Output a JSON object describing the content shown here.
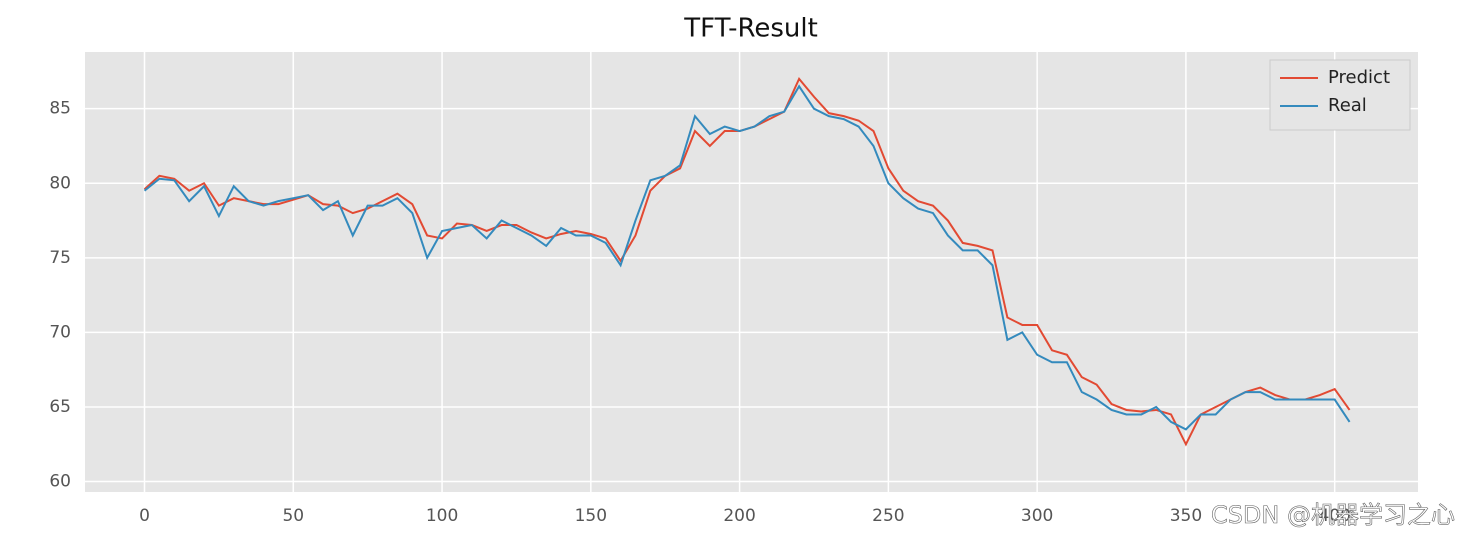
{
  "chart_data": {
    "type": "line",
    "title": "TFT-Result",
    "x": [
      0,
      5,
      10,
      15,
      20,
      25,
      30,
      35,
      40,
      45,
      50,
      55,
      60,
      65,
      70,
      75,
      80,
      85,
      90,
      95,
      100,
      105,
      110,
      115,
      120,
      125,
      130,
      135,
      140,
      145,
      150,
      155,
      160,
      165,
      170,
      175,
      180,
      185,
      190,
      195,
      200,
      205,
      210,
      215,
      220,
      225,
      230,
      235,
      240,
      245,
      250,
      255,
      260,
      265,
      270,
      275,
      280,
      285,
      290,
      295,
      300,
      305,
      310,
      315,
      320,
      325,
      330,
      335,
      340,
      345,
      350,
      355,
      360,
      365,
      370,
      375,
      380,
      385,
      390,
      395,
      400,
      405
    ],
    "series": [
      {
        "name": "Predict",
        "color": "#e24a33",
        "values": [
          79.6,
          80.5,
          80.3,
          79.5,
          80.0,
          78.5,
          79.0,
          78.8,
          78.6,
          78.6,
          78.9,
          79.2,
          78.6,
          78.5,
          78.0,
          78.3,
          78.8,
          79.3,
          78.6,
          76.5,
          76.3,
          77.3,
          77.2,
          76.8,
          77.2,
          77.2,
          76.7,
          76.3,
          76.6,
          76.8,
          76.6,
          76.3,
          74.8,
          76.5,
          79.5,
          80.5,
          81.0,
          83.5,
          82.5,
          83.5,
          83.5,
          83.8,
          84.3,
          84.8,
          87.0,
          85.8,
          84.7,
          84.5,
          84.2,
          83.5,
          81.0,
          79.5,
          78.8,
          78.5,
          77.5,
          76.0,
          75.8,
          75.5,
          71.0,
          70.5,
          70.5,
          68.8,
          68.5,
          67.0,
          66.5,
          65.2,
          64.8,
          64.7,
          64.8,
          64.5,
          62.5,
          64.5,
          65.0,
          65.5,
          66.0,
          66.3,
          65.8,
          65.5,
          65.5,
          65.8,
          66.2,
          64.8
        ]
      },
      {
        "name": "Real",
        "color": "#348abd",
        "values": [
          79.5,
          80.3,
          80.2,
          78.8,
          79.8,
          77.8,
          79.8,
          78.8,
          78.5,
          78.8,
          79.0,
          79.2,
          78.2,
          78.8,
          76.5,
          78.5,
          78.5,
          79.0,
          78.0,
          75.0,
          76.8,
          77.0,
          77.2,
          76.3,
          77.5,
          77.0,
          76.5,
          75.8,
          77.0,
          76.5,
          76.5,
          76.0,
          74.5,
          77.5,
          80.2,
          80.5,
          81.2,
          84.5,
          83.3,
          83.8,
          83.5,
          83.8,
          84.5,
          84.8,
          86.5,
          85.0,
          84.5,
          84.3,
          83.8,
          82.5,
          80.0,
          79.0,
          78.3,
          78.0,
          76.5,
          75.5,
          75.5,
          74.5,
          69.5,
          70.0,
          68.5,
          68.0,
          68.0,
          66.0,
          65.5,
          64.8,
          64.5,
          64.5,
          65.0,
          64.0,
          63.5,
          64.5,
          64.5,
          65.5,
          66.0,
          66.0,
          65.5,
          65.5,
          65.5,
          65.5,
          65.5,
          64.0
        ]
      }
    ],
    "xlim": [
      -20,
      428
    ],
    "ylim": [
      59.3,
      88.8
    ],
    "xticks": [
      0,
      50,
      100,
      150,
      200,
      250,
      300,
      350,
      400
    ],
    "yticks": [
      60,
      65,
      70,
      75,
      80,
      85
    ],
    "grid": true,
    "legend": "upper right"
  },
  "watermark": "CSDN @机器学习之心"
}
